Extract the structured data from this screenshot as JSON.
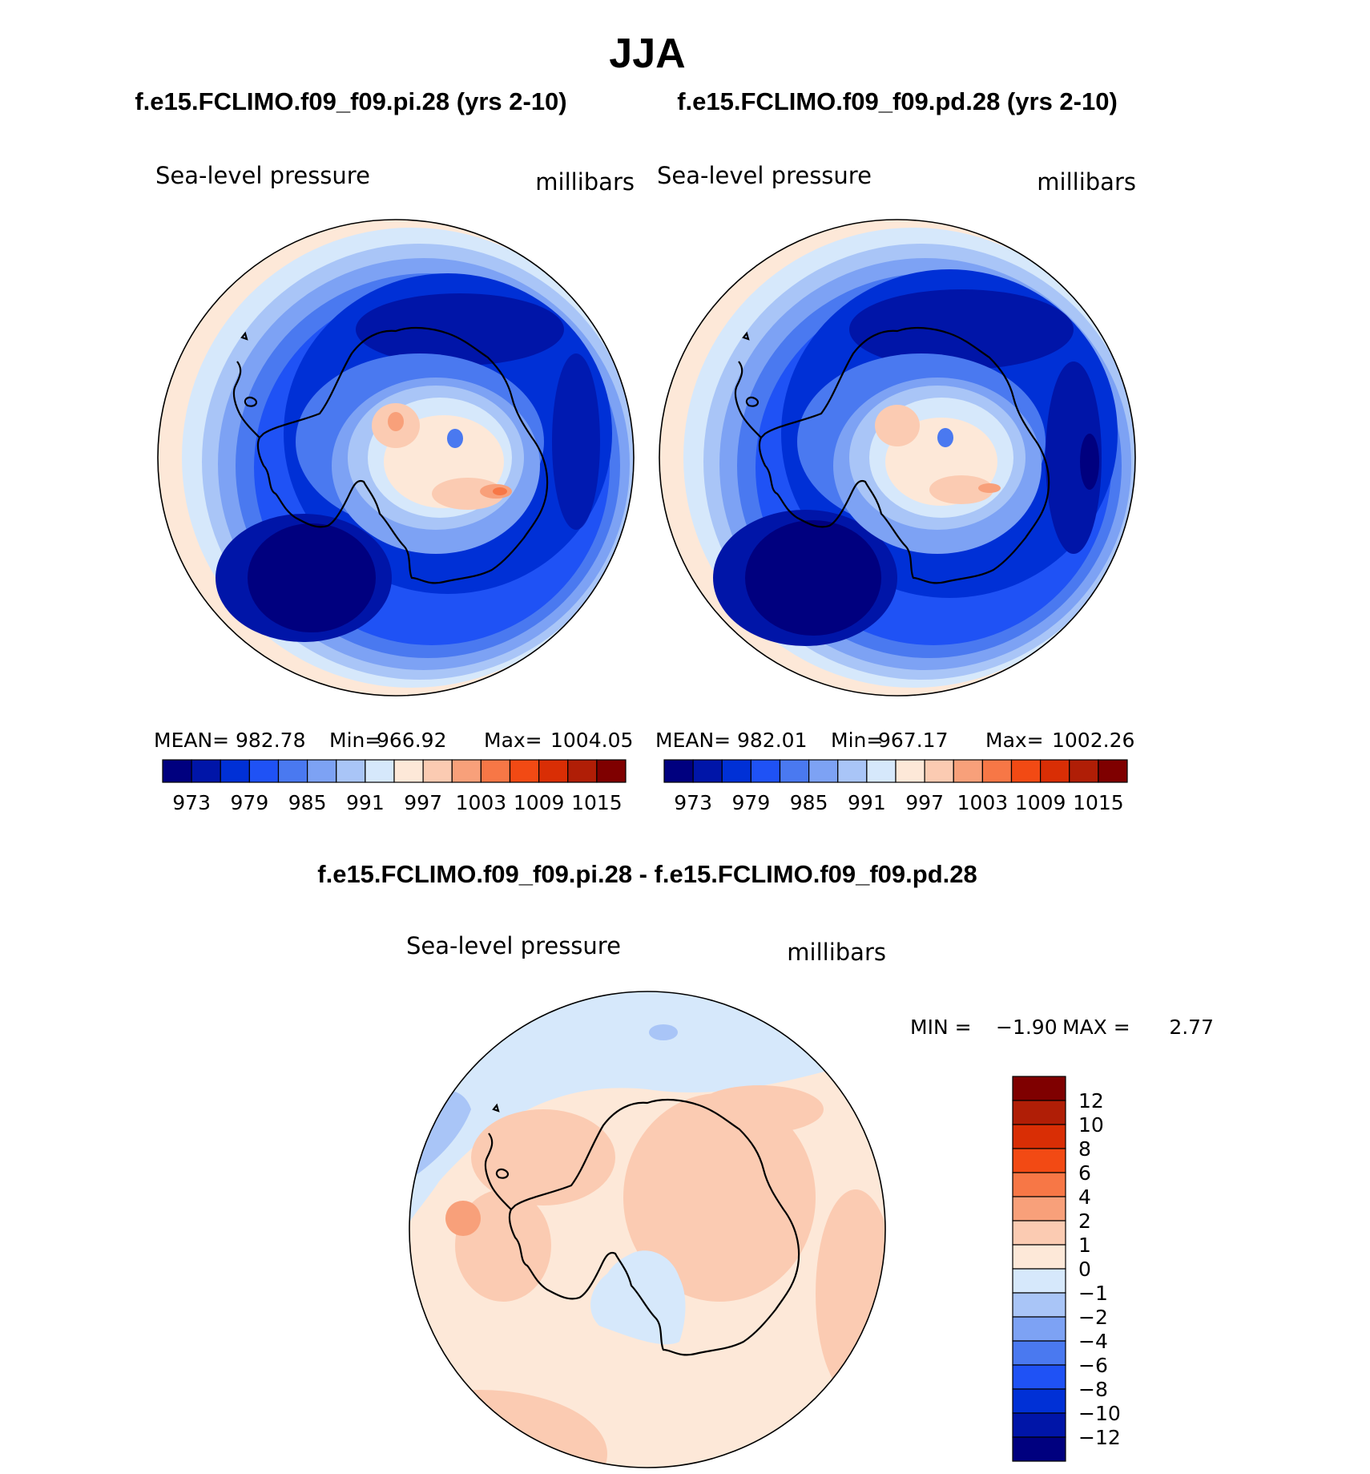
{
  "season_title": "JJA",
  "panels": [
    {
      "case_title": "f.e15.FCLIMO.f09_f09.pi.28 (yrs 2-10)",
      "variable": "Sea-level pressure",
      "units": "millibars",
      "stats": {
        "mean_label": "MEAN=",
        "mean": "982.78",
        "min_label": "Min=",
        "min": "966.92",
        "max_label": "Max=",
        "max": "1004.05"
      }
    },
    {
      "case_title": "f.e15.FCLIMO.f09_f09.pd.28 (yrs 2-10)",
      "variable": "Sea-level pressure",
      "units": "millibars",
      "stats": {
        "mean_label": "MEAN=",
        "mean": "982.01",
        "min_label": "Min=",
        "min": "967.17",
        "max_label": "Max=",
        "max": "1002.26"
      }
    }
  ],
  "abs_colorbar": {
    "colors": [
      "#00007f",
      "#0015a8",
      "#0030d6",
      "#1f52f5",
      "#4a79f0",
      "#7da2f4",
      "#a9c5f7",
      "#d6e8fb",
      "#fde8d8",
      "#fbcbb2",
      "#f8a07a",
      "#f77746",
      "#f24a14",
      "#d92e05",
      "#b01e06",
      "#7f0000"
    ],
    "tick_labels": [
      "973",
      "979",
      "985",
      "991",
      "997",
      "1003",
      "1009",
      "1015"
    ]
  },
  "diff_panel": {
    "title": "f.e15.FCLIMO.f09_f09.pi.28 - f.e15.FCLIMO.f09_f09.pd.28",
    "variable": "Sea-level pressure",
    "units": "millibars",
    "min_label": "MIN =",
    "min": "−1.90",
    "max_label": "MAX =",
    "max": "2.77"
  },
  "diff_colorbar": {
    "colors": [
      "#7f0000",
      "#b01e06",
      "#d92e05",
      "#f24a14",
      "#f77746",
      "#f8a07a",
      "#fbcbb2",
      "#fde8d8",
      "#d6e8fb",
      "#a9c5f7",
      "#7da2f4",
      "#4a79f0",
      "#1f52f5",
      "#0030d6",
      "#0015a8",
      "#00007f"
    ],
    "tick_labels": [
      "12",
      "10",
      "8",
      "6",
      "4",
      "2",
      "1",
      "0",
      "−1",
      "−2",
      "−4",
      "−6",
      "−8",
      "−10",
      "−12"
    ]
  }
}
